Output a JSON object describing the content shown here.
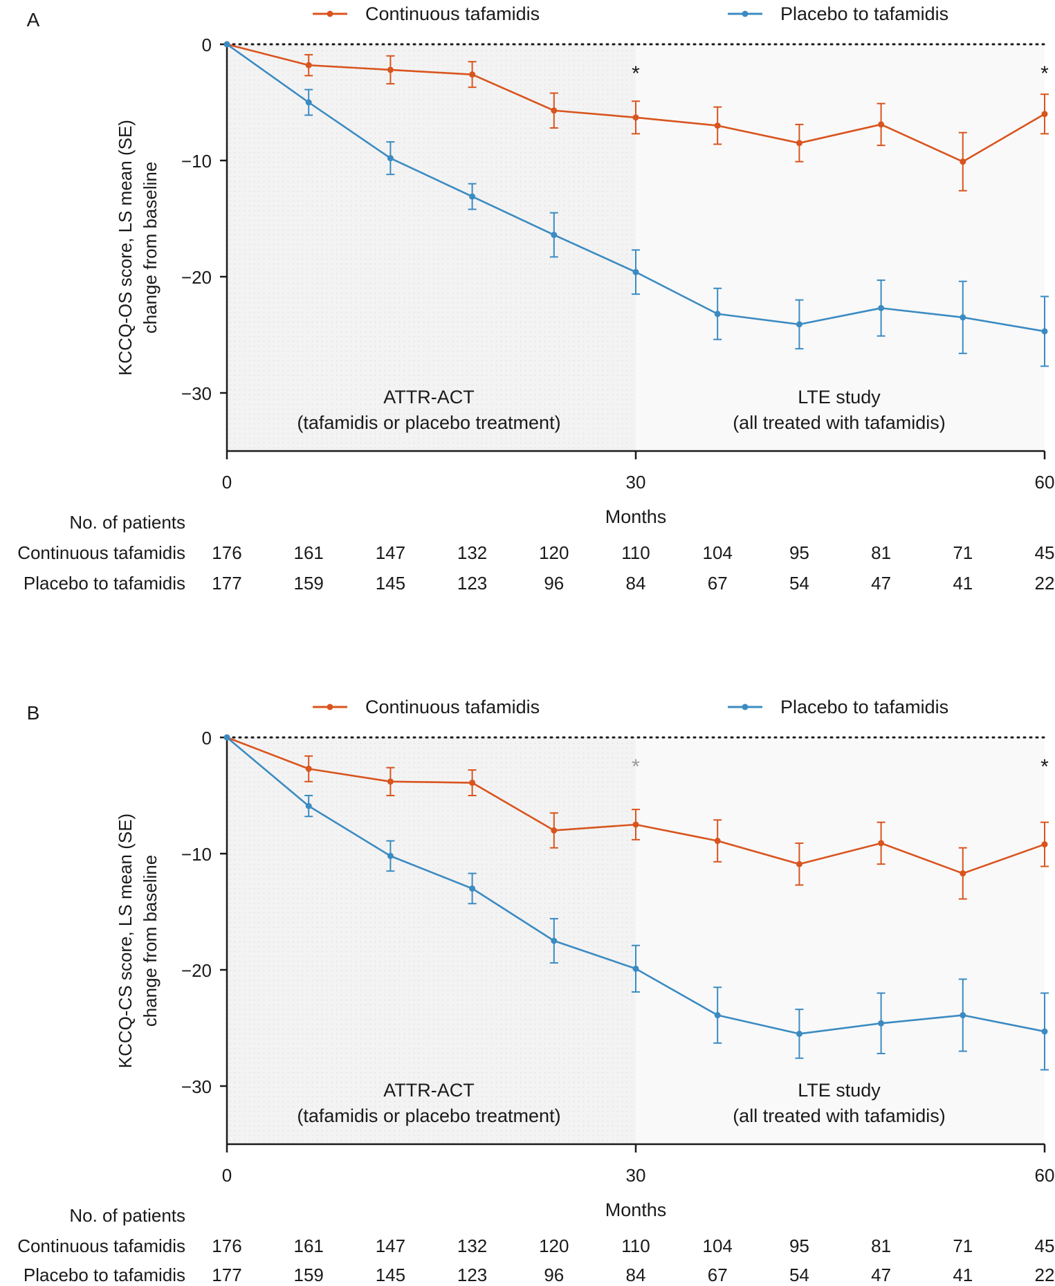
{
  "colors": {
    "continuous": "#d9541e",
    "placebo": "#3b8bc2",
    "axis": "#1a1a1a",
    "attr_act_shade": "#f2f2f2",
    "lte_shade": "#f9f9f9",
    "asterisk_gray": "#9b9b9b"
  },
  "shared": {
    "legend": [
      "Continuous tafamidis",
      "Placebo to tafamidis"
    ],
    "region_labels": {
      "attr_act_line1": "ATTR-ACT",
      "attr_act_line2": "(tafamidis or placebo treatment)",
      "lte_line1": "LTE study",
      "lte_line2": "(all treated with tafamidis)"
    },
    "xlabel": "Months",
    "patients_header": "No. of patients",
    "row_labels": [
      "Continuous tafamidis",
      "Placebo to tafamidis"
    ]
  },
  "chart_data": [
    {
      "panel": "A",
      "type": "line",
      "ylabel_line1": "KCCQ-OS score, LS mean (SE)",
      "ylabel_line2": "change from baseline",
      "xlabel": "Months",
      "xlim": [
        0,
        60
      ],
      "ylim": [
        -35,
        0
      ],
      "x_ticks": [
        0,
        30,
        60
      ],
      "y_ticks": [
        0,
        -10,
        -20,
        -30
      ],
      "y_tick_labels": [
        "0",
        "−10",
        "−20",
        "−30"
      ],
      "x": [
        0,
        6,
        12,
        18,
        24,
        30,
        36,
        42,
        48,
        54,
        60
      ],
      "series": [
        {
          "name": "Continuous tafamidis",
          "color": "#d9541e",
          "values": [
            0,
            -1.8,
            -2.2,
            -2.6,
            -5.7,
            -6.3,
            -7.0,
            -8.5,
            -6.9,
            -10.1,
            -6.0
          ],
          "se": [
            0,
            0.9,
            1.2,
            1.1,
            1.5,
            1.4,
            1.6,
            1.6,
            1.8,
            2.5,
            1.7
          ]
        },
        {
          "name": "Placebo to tafamidis",
          "color": "#3b8bc2",
          "values": [
            0,
            -5.0,
            -9.8,
            -13.1,
            -16.4,
            -19.6,
            -23.2,
            -24.1,
            -22.7,
            -23.5,
            -24.7
          ],
          "se": [
            0,
            1.1,
            1.4,
            1.1,
            1.9,
            1.9,
            2.2,
            2.1,
            2.4,
            3.1,
            3.0
          ]
        }
      ],
      "significance": [
        {
          "x": 30,
          "symbol": "*",
          "color": "#1a1a1a"
        },
        {
          "x": 60,
          "symbol": "*",
          "color": "#1a1a1a"
        }
      ],
      "patients": {
        "x": [
          0,
          6,
          12,
          18,
          24,
          30,
          36,
          42,
          48,
          54,
          60
        ],
        "continuous": [
          "176",
          "161",
          "147",
          "132",
          "120",
          "110",
          "104",
          "95",
          "81",
          "71",
          "45"
        ],
        "placebo": [
          "177",
          "159",
          "145",
          "123",
          "96",
          "84",
          "67",
          "54",
          "47",
          "41",
          "22"
        ]
      },
      "legend_position": "top",
      "grid": false
    },
    {
      "panel": "B",
      "type": "line",
      "ylabel_line1": "KCCQ-CS score, LS mean (SE)",
      "ylabel_line2": "change from baseline",
      "xlabel": "Months",
      "xlim": [
        0,
        60
      ],
      "ylim": [
        -35,
        0
      ],
      "x_ticks": [
        0,
        30,
        60
      ],
      "y_ticks": [
        0,
        -10,
        -20,
        -30
      ],
      "y_tick_labels": [
        "0",
        "−10",
        "−20",
        "−30"
      ],
      "x": [
        0,
        6,
        12,
        18,
        24,
        30,
        36,
        42,
        48,
        54,
        60
      ],
      "series": [
        {
          "name": "Continuous tafamidis",
          "color": "#d9541e",
          "values": [
            0,
            -2.7,
            -3.8,
            -3.9,
            -8.0,
            -7.5,
            -8.9,
            -10.9,
            -9.1,
            -11.7,
            -9.2
          ],
          "se": [
            0,
            1.1,
            1.2,
            1.1,
            1.5,
            1.3,
            1.8,
            1.8,
            1.8,
            2.2,
            1.9
          ]
        },
        {
          "name": "Placebo to tafamidis",
          "color": "#3b8bc2",
          "values": [
            0,
            -5.9,
            -10.2,
            -13.0,
            -17.5,
            -19.9,
            -23.9,
            -25.5,
            -24.6,
            -23.9,
            -25.3
          ],
          "se": [
            0,
            0.9,
            1.3,
            1.3,
            1.9,
            2.0,
            2.4,
            2.1,
            2.6,
            3.1,
            3.3
          ]
        }
      ],
      "significance": [
        {
          "x": 30,
          "symbol": "*",
          "color": "#9b9b9b"
        },
        {
          "x": 60,
          "symbol": "*",
          "color": "#1a1a1a"
        }
      ],
      "patients": {
        "x": [
          0,
          6,
          12,
          18,
          24,
          30,
          36,
          42,
          48,
          54,
          60
        ],
        "continuous": [
          "176",
          "161",
          "147",
          "132",
          "120",
          "110",
          "104",
          "95",
          "81",
          "71",
          "45"
        ],
        "placebo": [
          "177",
          "159",
          "145",
          "123",
          "96",
          "84",
          "67",
          "54",
          "47",
          "41",
          "22"
        ]
      },
      "legend_position": "top",
      "grid": false
    }
  ]
}
